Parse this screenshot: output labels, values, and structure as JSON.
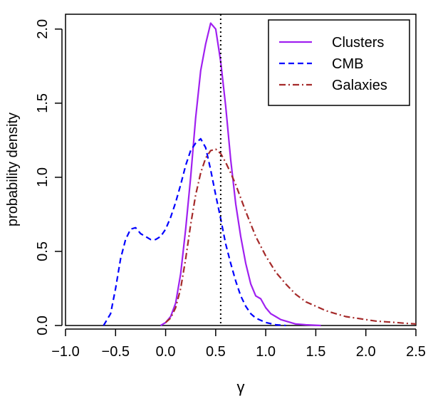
{
  "chart_data": {
    "type": "line",
    "title": "",
    "xlabel": "γ",
    "ylabel": "probability density",
    "xlim": [
      -1.0,
      2.5
    ],
    "ylim": [
      0.0,
      2.1
    ],
    "x_ticks": [
      -1.0,
      -0.5,
      0.0,
      0.5,
      1.0,
      1.5,
      2.0,
      2.5
    ],
    "x_tick_labels": [
      "−1.0",
      "−0.5",
      "0.0",
      "0.5",
      "1.0",
      "1.5",
      "2.0",
      "2.5"
    ],
    "y_ticks": [
      0.0,
      0.5,
      1.0,
      1.5,
      2.0
    ],
    "y_tick_labels": [
      "0.0",
      "0.5",
      "1.0",
      "1.5",
      "2.0"
    ],
    "grid": false,
    "legend_position": "top-right",
    "reference_lines": [
      {
        "orientation": "vertical",
        "x": 0.55,
        "style": "dotted",
        "color": "#000000"
      }
    ],
    "series": [
      {
        "name": "Clusters",
        "color": "#a020f0",
        "dash": "solid",
        "points": [
          [
            -0.05,
            0.0
          ],
          [
            0.0,
            0.02
          ],
          [
            0.05,
            0.06
          ],
          [
            0.1,
            0.15
          ],
          [
            0.15,
            0.35
          ],
          [
            0.2,
            0.65
          ],
          [
            0.25,
            1.0
          ],
          [
            0.3,
            1.4
          ],
          [
            0.35,
            1.72
          ],
          [
            0.4,
            1.9
          ],
          [
            0.45,
            2.04
          ],
          [
            0.5,
            2.0
          ],
          [
            0.55,
            1.78
          ],
          [
            0.6,
            1.48
          ],
          [
            0.65,
            1.12
          ],
          [
            0.7,
            0.82
          ],
          [
            0.75,
            0.6
          ],
          [
            0.8,
            0.42
          ],
          [
            0.85,
            0.28
          ],
          [
            0.9,
            0.2
          ],
          [
            0.95,
            0.18
          ],
          [
            1.0,
            0.12
          ],
          [
            1.05,
            0.08
          ],
          [
            1.1,
            0.06
          ],
          [
            1.15,
            0.04
          ],
          [
            1.2,
            0.03
          ],
          [
            1.3,
            0.01
          ],
          [
            1.4,
            0.005
          ],
          [
            1.55,
            0.0
          ]
        ]
      },
      {
        "name": "CMB",
        "color": "#0000ff",
        "dash": "dashed",
        "points": [
          [
            -0.62,
            0.0
          ],
          [
            -0.55,
            0.08
          ],
          [
            -0.5,
            0.25
          ],
          [
            -0.45,
            0.45
          ],
          [
            -0.4,
            0.58
          ],
          [
            -0.35,
            0.65
          ],
          [
            -0.3,
            0.66
          ],
          [
            -0.25,
            0.62
          ],
          [
            -0.2,
            0.6
          ],
          [
            -0.15,
            0.58
          ],
          [
            -0.1,
            0.58
          ],
          [
            -0.05,
            0.6
          ],
          [
            0.0,
            0.65
          ],
          [
            0.05,
            0.73
          ],
          [
            0.1,
            0.83
          ],
          [
            0.15,
            0.95
          ],
          [
            0.2,
            1.08
          ],
          [
            0.25,
            1.18
          ],
          [
            0.3,
            1.23
          ],
          [
            0.35,
            1.26
          ],
          [
            0.4,
            1.2
          ],
          [
            0.45,
            1.05
          ],
          [
            0.5,
            0.88
          ],
          [
            0.55,
            0.72
          ],
          [
            0.6,
            0.55
          ],
          [
            0.65,
            0.42
          ],
          [
            0.7,
            0.3
          ],
          [
            0.75,
            0.2
          ],
          [
            0.8,
            0.13
          ],
          [
            0.85,
            0.08
          ],
          [
            0.9,
            0.05
          ],
          [
            1.0,
            0.02
          ],
          [
            1.1,
            0.005
          ],
          [
            1.2,
            0.0
          ]
        ]
      },
      {
        "name": "Galaxies",
        "color": "#a52a2a",
        "dash": "dashdot",
        "points": [
          [
            0.0,
            0.02
          ],
          [
            0.05,
            0.05
          ],
          [
            0.1,
            0.12
          ],
          [
            0.15,
            0.25
          ],
          [
            0.2,
            0.45
          ],
          [
            0.25,
            0.68
          ],
          [
            0.3,
            0.88
          ],
          [
            0.35,
            1.03
          ],
          [
            0.4,
            1.13
          ],
          [
            0.45,
            1.18
          ],
          [
            0.5,
            1.19
          ],
          [
            0.55,
            1.16
          ],
          [
            0.6,
            1.1
          ],
          [
            0.65,
            1.03
          ],
          [
            0.7,
            0.95
          ],
          [
            0.75,
            0.86
          ],
          [
            0.8,
            0.77
          ],
          [
            0.9,
            0.6
          ],
          [
            1.0,
            0.47
          ],
          [
            1.1,
            0.36
          ],
          [
            1.2,
            0.28
          ],
          [
            1.3,
            0.21
          ],
          [
            1.4,
            0.16
          ],
          [
            1.5,
            0.13
          ],
          [
            1.6,
            0.1
          ],
          [
            1.7,
            0.08
          ],
          [
            1.8,
            0.06
          ],
          [
            1.9,
            0.05
          ],
          [
            2.0,
            0.04
          ],
          [
            2.1,
            0.03
          ],
          [
            2.2,
            0.025
          ],
          [
            2.3,
            0.02
          ],
          [
            2.4,
            0.015
          ],
          [
            2.5,
            0.01
          ]
        ]
      }
    ]
  }
}
